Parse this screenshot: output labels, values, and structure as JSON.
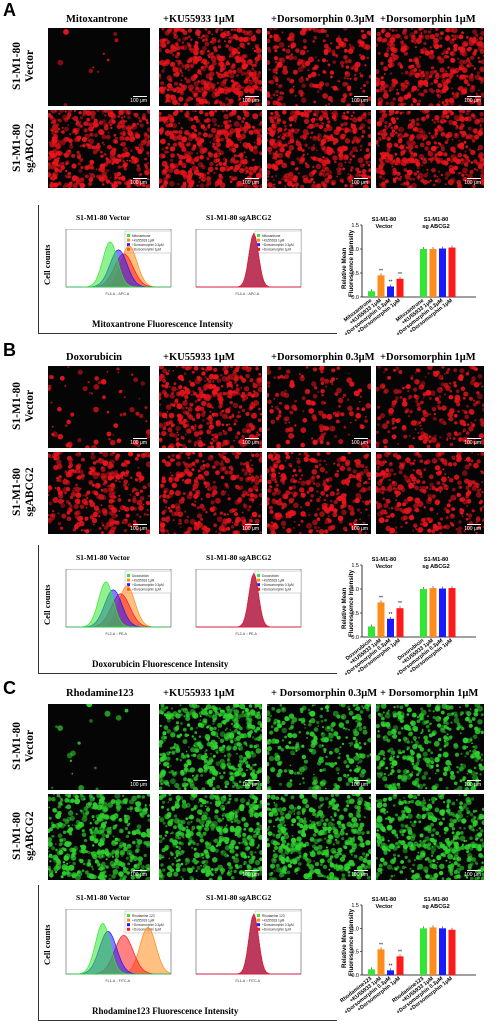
{
  "panels": [
    {
      "letter": "A",
      "columns": [
        "Mitoxantrone",
        "+KU55933 1μM",
        "+Dorsomorphin 0.3μM",
        "+Dorsomorphin 1μM"
      ],
      "rows": [
        [
          "S1-M1-80",
          "Vector"
        ],
        [
          "S1-M1-80",
          "sgABCG2"
        ]
      ],
      "scale_bar": "100 μm",
      "stain_color": "#e8141c",
      "densities": [
        [
          0.02,
          0.85,
          0.45,
          0.7
        ],
        [
          0.8,
          0.8,
          0.8,
          0.8
        ]
      ],
      "histograms": {
        "titles": [
          "S1-M1-80 Vector",
          "S1-M1-80 sgABCG2"
        ],
        "ylabel": "Cell counts",
        "xlabel": "Mitoxantrone Fluorescence Intensity",
        "axis_text": "FL4-A :: APC-A",
        "legend": [
          "Mitoxantrone",
          "+KU55933 1μM",
          "+Dorsomorphin 0.3μM",
          "+Dorsomorphin 1μM"
        ]
      },
      "bar_chart": {
        "ylabel": [
          "Relative Mean",
          "Fluorescence Intensity"
        ],
        "group_titles": [
          [
            "S1-M1-80",
            "Vector"
          ],
          [
            "S1-M1-80",
            "sg ABCG2"
          ]
        ],
        "yticks": [
          "0.0",
          "0.5",
          "1.0",
          "1.5"
        ]
      }
    },
    {
      "letter": "B",
      "columns": [
        "Doxorubicin",
        "+KU55933 1μM",
        "+Dorsomorphin 0.3μM",
        "+Dorsomorphin 1μM"
      ],
      "rows": [
        [
          "S1-M1-80",
          "Vector"
        ],
        [
          "S1-M1-80",
          "sgABCG2"
        ]
      ],
      "scale_bar": "100 μm",
      "stain_color": "#e8141c",
      "densities": [
        [
          0.12,
          0.75,
          0.3,
          0.45
        ],
        [
          0.6,
          0.6,
          0.6,
          0.6
        ]
      ],
      "histograms": {
        "titles": [
          "S1-M1-80 Vector",
          "S1-M1-80 sgABCG2"
        ],
        "ylabel": "Cell counts",
        "xlabel": "Doxorubicin Fluorescence Intensity",
        "axis_text": "FL2-A :: PE-A",
        "legend": [
          "Doxorubicin",
          "+KU55933 1μM",
          "+Dorsomorphin 0.3μM",
          "+Dorsomorphin 1μM"
        ]
      },
      "bar_chart": {
        "ylabel": [
          "Relative Mean",
          "Fluorescence Intensity"
        ],
        "group_titles": [
          [
            "S1-M1-80",
            "Vector"
          ],
          [
            "S1-M1-80",
            "sg ABCG2"
          ]
        ],
        "yticks": [
          "0.0",
          "0.5",
          "1.0",
          "1.5"
        ]
      }
    },
    {
      "letter": "C",
      "columns": [
        "Rhodamine123",
        "+KU55933 1μM",
        "+ Dorsomorphin 0.3μM",
        "+ Dorsomorphin 1μM"
      ],
      "rows": [
        [
          "S1-M1-80",
          "Vector"
        ],
        [
          "S1-M1-80",
          "sgABCG2"
        ]
      ],
      "scale_bar": "100 μm",
      "stain_color": "#2ed12e",
      "densities": [
        [
          0.03,
          0.9,
          0.55,
          0.7
        ],
        [
          0.85,
          0.85,
          0.85,
          0.85
        ]
      ],
      "histograms": {
        "titles": [
          "S1-M1-80 Vector",
          "S1-M1-80 sgABCG2"
        ],
        "ylabel": "Cell counts",
        "xlabel": "Rhodamine123 Fluorescence Intensity",
        "axis_text": "FL1-A :: FITC-A",
        "legend": [
          "Rhodamine 123",
          "+KU55933 1μM",
          "+Dorsomorphin 0.3μM",
          "+Dorsomorphin 1μM"
        ]
      },
      "bar_chart": {
        "ylabel": [
          "Relative Mean",
          "Fluorescence Intensity"
        ],
        "group_titles": [
          [
            "S1-M1-80",
            "Vector"
          ],
          [
            "S1-M1-80",
            "sg ABCG2"
          ]
        ],
        "yticks": [
          "0.0",
          "0.5",
          "1.0",
          "1.5"
        ]
      }
    }
  ],
  "chart_data": [
    {
      "type": "bar",
      "panel": "A",
      "categories": [
        "Mitoxantrone",
        "+KU55933 1μM",
        "+Dorsomorphin 0.3μM",
        "+Dorsomorphin 1μM",
        "Mitoxantrone",
        "+KU55933 1μM",
        "+Dorsomorphin 0.3μM",
        "+Dorsomorphin 1μM"
      ],
      "groups": [
        "S1-M1-80 Vector",
        "S1-M1-80 sg ABCG2"
      ],
      "values": [
        0.12,
        0.45,
        0.22,
        0.38,
        1.0,
        1.0,
        1.01,
        1.03
      ],
      "significance": [
        "",
        "**",
        "**",
        "**",
        "",
        "",
        "",
        ""
      ],
      "colors": [
        "#33e633",
        "#ff8c1a",
        "#1a1aff",
        "#ff1a1a",
        "#33e633",
        "#ff8c1a",
        "#1a1aff",
        "#ff1a1a"
      ],
      "ylabel": "Relative Mean Fluorescence Intensity",
      "ylim": [
        0,
        1.5
      ]
    },
    {
      "type": "bar",
      "panel": "B",
      "categories": [
        "Doxorubicin",
        "+KU55933 1μM",
        "+Dorsomorphin 0.3μM",
        "+Dorsomorphin 1μM",
        "Doxorubicin",
        "+KU55933 1μM",
        "+Dorsomorphin 0.3μM",
        "+Dorsomorphin 1μM"
      ],
      "groups": [
        "S1-M1-80 Vector",
        "S1-M1-80 sg ABCG2"
      ],
      "values": [
        0.22,
        0.72,
        0.38,
        0.6,
        1.0,
        1.02,
        1.01,
        1.02
      ],
      "significance": [
        "",
        "**",
        "**",
        "**",
        "",
        "",
        "",
        ""
      ],
      "colors": [
        "#33e633",
        "#ff8c1a",
        "#1a1aff",
        "#ff1a1a",
        "#33e633",
        "#ff8c1a",
        "#1a1aff",
        "#ff1a1a"
      ],
      "ylabel": "Relative Mean Fluorescence Intensity",
      "ylim": [
        0,
        1.5
      ]
    },
    {
      "type": "bar",
      "panel": "C",
      "categories": [
        "Rhodamine123",
        "+KU55933 1μM",
        "+Dorsomorphin 0.3μM",
        "+Dorsomorphin 1μM",
        "Rhodamine123",
        "+KU55933 1μM",
        "+Dorsomorphin 0.3μM",
        "+Dorsomorphin 1μM"
      ],
      "groups": [
        "S1-M1-80 Vector",
        "S1-M1-80 sg ABCG2"
      ],
      "values": [
        0.12,
        0.55,
        0.1,
        0.4,
        1.0,
        1.02,
        1.0,
        0.97
      ],
      "significance": [
        "",
        "**",
        "**",
        "**",
        "",
        "",
        "",
        ""
      ],
      "colors": [
        "#33e633",
        "#ff8c1a",
        "#1a1aff",
        "#ff1a1a",
        "#33e633",
        "#ff8c1a",
        "#1a1aff",
        "#ff1a1a"
      ],
      "ylabel": "Relative Mean Fluorescence Intensity",
      "ylim": [
        0,
        1.5
      ]
    }
  ]
}
